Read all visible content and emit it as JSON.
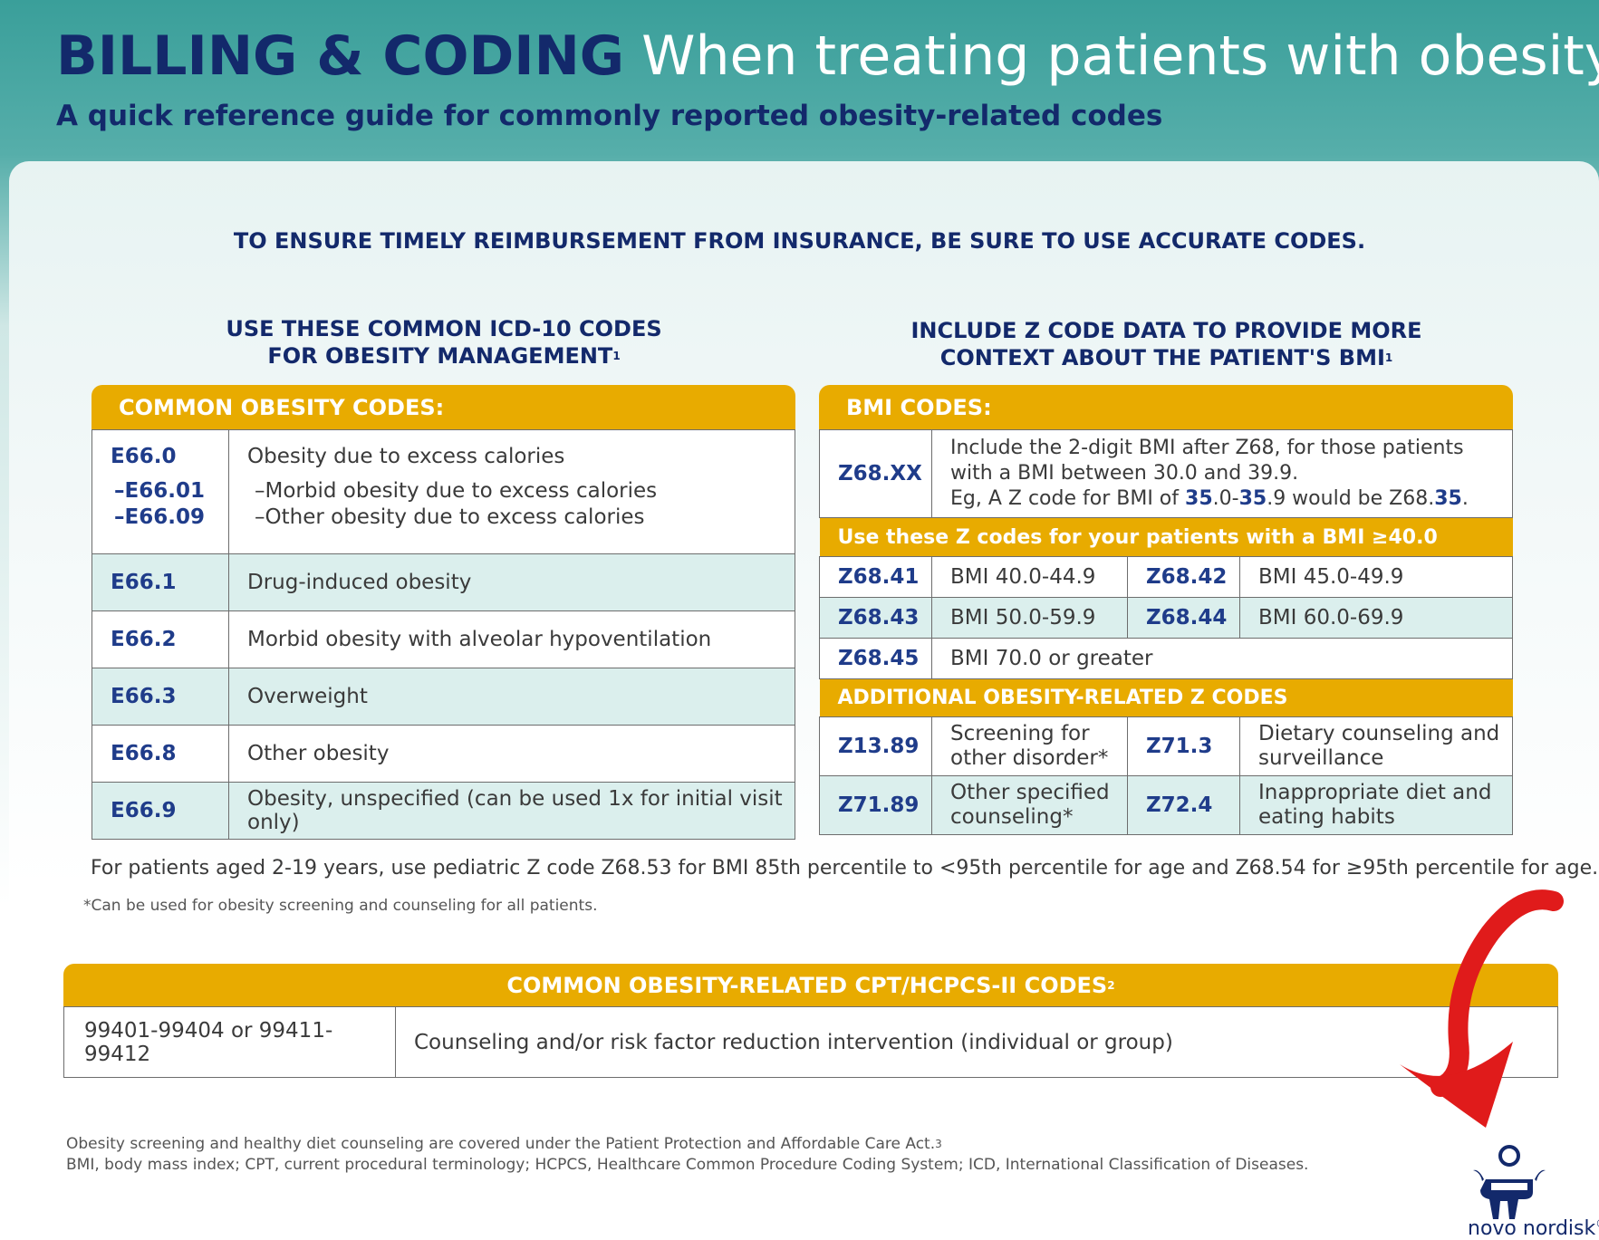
{
  "header": {
    "title_bold": "BILLING & CODING",
    "title_light": "When treating patients with obesity",
    "subtitle": "A quick reference guide for commonly reported obesity-related codes"
  },
  "banner": "TO ENSURE TIMELY REIMBURSEMENT FROM INSURANCE, BE SURE TO USE ACCURATE CODES.",
  "left": {
    "heading_line1": "USE THESE COMMON ICD-10 CODES",
    "heading_line2": "FOR OBESITY MANAGEMENT",
    "heading_sup": "1",
    "table_title": "COMMON OBESITY CODES:",
    "first_row": {
      "code": "E66.0",
      "sub1_code": "–E66.01",
      "sub2_code": "–E66.09",
      "desc": "Obesity due to excess calories",
      "sub1_desc": "–Morbid obesity due to excess calories",
      "sub2_desc": "–Other obesity due to excess calories"
    },
    "rows": [
      {
        "code": "E66.1",
        "desc": "Drug-induced obesity"
      },
      {
        "code": "E66.2",
        "desc": "Morbid obesity with alveolar hypoventilation"
      },
      {
        "code": "E66.3",
        "desc": "Overweight"
      },
      {
        "code": "E66.8",
        "desc": "Other obesity"
      },
      {
        "code": "E66.9",
        "desc": "Obesity, unspecified (can be used 1x for initial visit only)"
      }
    ]
  },
  "right": {
    "heading_line1": "INCLUDE Z CODE DATA TO PROVIDE MORE",
    "heading_line2": "CONTEXT ABOUT THE PATIENT'S BMI",
    "heading_sup": "1",
    "table_title": "BMI CODES:",
    "zxx": {
      "code": "Z68.XX",
      "line1": "Include the 2-digit BMI after Z68, for those patients",
      "line2": "with a BMI between 30.0 and 39.9.",
      "line3_a": "Eg, A Z code for BMI of ",
      "line3_b": "35",
      "line3_c": ".0-",
      "line3_d": "35",
      "line3_e": ".9 would be Z68.",
      "line3_f": "35",
      "line3_g": "."
    },
    "section_40": "Use these Z codes for your patients with a BMI ≥40.0",
    "bmi_rows": [
      {
        "c1": "Z68.41",
        "d1": "BMI 40.0-44.9",
        "c2": "Z68.42",
        "d2": "BMI 45.0-49.9"
      },
      {
        "c1": "Z68.43",
        "d1": "BMI 50.0-59.9",
        "c2": "Z68.44",
        "d2": "BMI 60.0-69.9"
      }
    ],
    "z6845": {
      "code": "Z68.45",
      "desc": "BMI 70.0 or greater"
    },
    "section_additional": "ADDITIONAL OBESITY-RELATED Z CODES",
    "additional_rows": [
      {
        "c1": "Z13.89",
        "d1a": "Screening for",
        "d1b": "other disorder*",
        "c2": "Z71.3",
        "d2a": "Dietary counseling and",
        "d2b": "surveillance"
      },
      {
        "c1": "Z71.89",
        "d1a": "Other specified",
        "d1b": "counseling*",
        "c2": "Z72.4",
        "d2a": "Inappropriate diet and",
        "d2b": "eating habits"
      }
    ]
  },
  "footnote_pediatric": "For patients aged 2-19 years, use pediatric Z code Z68.53 for BMI 85th percentile to <95th percentile for age and Z68.54 for ≥95th percentile for age.",
  "footnote_star": "*Can be used for obesity screening and counseling for all patients.",
  "cpt": {
    "title": "COMMON OBESITY-RELATED CPT/HCPCS-II CODES",
    "title_sup": "2",
    "code": "99401-99404 or 99411-99412",
    "desc": "Counseling and/or risk factor reduction intervention (individual or group)"
  },
  "legal": {
    "line1": "Obesity screening and healthy diet counseling are covered under the Patient Protection and Affordable Care Act.",
    "line1_sup": "3",
    "line2": "BMI, body mass index; CPT, current procedural terminology; HCPCS, Healthcare Common Procedure Coding System; ICD, International Classification of Diseases."
  },
  "logo": {
    "text": "novo nordisk",
    "reg": "®"
  },
  "colors": {
    "navy": "#13296b",
    "gold": "#e8ab00",
    "teal_row": "#dbefed",
    "annotation_red": "#e01b1b"
  }
}
